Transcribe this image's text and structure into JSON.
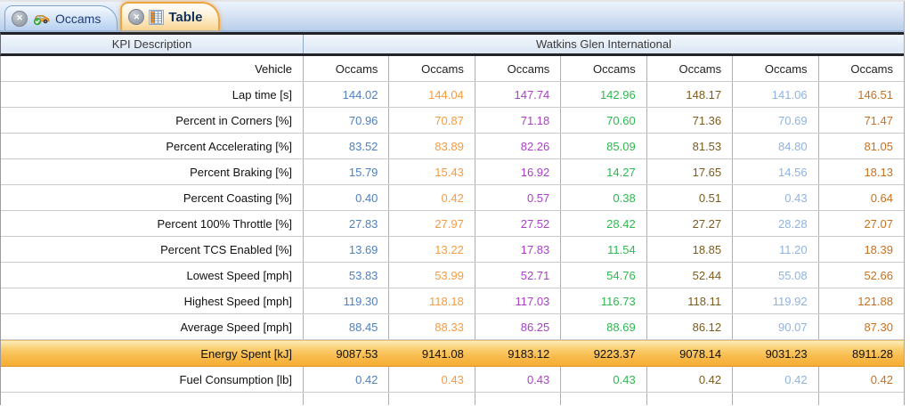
{
  "tabs": [
    {
      "label": "Occams",
      "icon": "car-check-icon",
      "active": false
    },
    {
      "label": "Table",
      "icon": "table-icon",
      "active": true
    }
  ],
  "icons": {
    "close_glyph": "✕"
  },
  "colors": {
    "tab_active_accent": "#EFA43F",
    "row_highlight": "#F7B94B",
    "column_value_colors": [
      "#4F81BD",
      "#F89B40",
      "#AA3FC8",
      "#2DB94E",
      "#7C5C1E",
      "#8FB3E0",
      "#C9701E"
    ]
  },
  "table": {
    "kpi_header": "KPI Description",
    "track_header": "Watkins Glen International",
    "vehicle_row_label": "Vehicle",
    "vehicle_names": [
      "Occams",
      "Occams",
      "Occams",
      "Occams",
      "Occams",
      "Occams",
      "Occams"
    ],
    "rows": [
      {
        "label": "Lap time [s]",
        "values": [
          "144.02",
          "144.04",
          "147.74",
          "142.96",
          "148.17",
          "141.06",
          "146.51"
        ],
        "highlighted": false
      },
      {
        "label": "Percent in Corners [%]",
        "values": [
          "70.96",
          "70.87",
          "71.18",
          "70.60",
          "71.36",
          "70.69",
          "71.47"
        ],
        "highlighted": false
      },
      {
        "label": "Percent Accelerating [%]",
        "values": [
          "83.52",
          "83.89",
          "82.26",
          "85.09",
          "81.53",
          "84.80",
          "81.05"
        ],
        "highlighted": false
      },
      {
        "label": "Percent Braking [%]",
        "values": [
          "15.79",
          "15.43",
          "16.92",
          "14.27",
          "17.65",
          "14.56",
          "18.13"
        ],
        "highlighted": false
      },
      {
        "label": "Percent Coasting [%]",
        "values": [
          "0.40",
          "0.42",
          "0.57",
          "0.38",
          "0.51",
          "0.43",
          "0.64"
        ],
        "highlighted": false
      },
      {
        "label": "Percent 100% Throttle [%]",
        "values": [
          "27.83",
          "27.97",
          "27.52",
          "28.42",
          "27.27",
          "28.28",
          "27.07"
        ],
        "highlighted": false
      },
      {
        "label": "Percent TCS Enabled [%]",
        "values": [
          "13.69",
          "13.22",
          "17.83",
          "11.54",
          "18.85",
          "11.20",
          "18.39"
        ],
        "highlighted": false
      },
      {
        "label": "Lowest Speed [mph]",
        "values": [
          "53.83",
          "53.99",
          "52.71",
          "54.76",
          "52.44",
          "55.08",
          "52.66"
        ],
        "highlighted": false
      },
      {
        "label": "Highest Speed [mph]",
        "values": [
          "119.30",
          "118.18",
          "117.03",
          "116.73",
          "118.11",
          "119.92",
          "121.88"
        ],
        "highlighted": false
      },
      {
        "label": "Average Speed [mph]",
        "values": [
          "88.45",
          "88.33",
          "86.25",
          "88.69",
          "86.12",
          "90.07",
          "87.30"
        ],
        "highlighted": false
      },
      {
        "label": "Energy Spent [kJ]",
        "values": [
          "9087.53",
          "9141.08",
          "9183.12",
          "9223.37",
          "9078.14",
          "9031.23",
          "8911.28"
        ],
        "highlighted": true
      },
      {
        "label": "Fuel Consumption [lb]",
        "values": [
          "0.42",
          "0.43",
          "0.43",
          "0.43",
          "0.42",
          "0.42",
          "0.42"
        ],
        "highlighted": false
      }
    ]
  }
}
